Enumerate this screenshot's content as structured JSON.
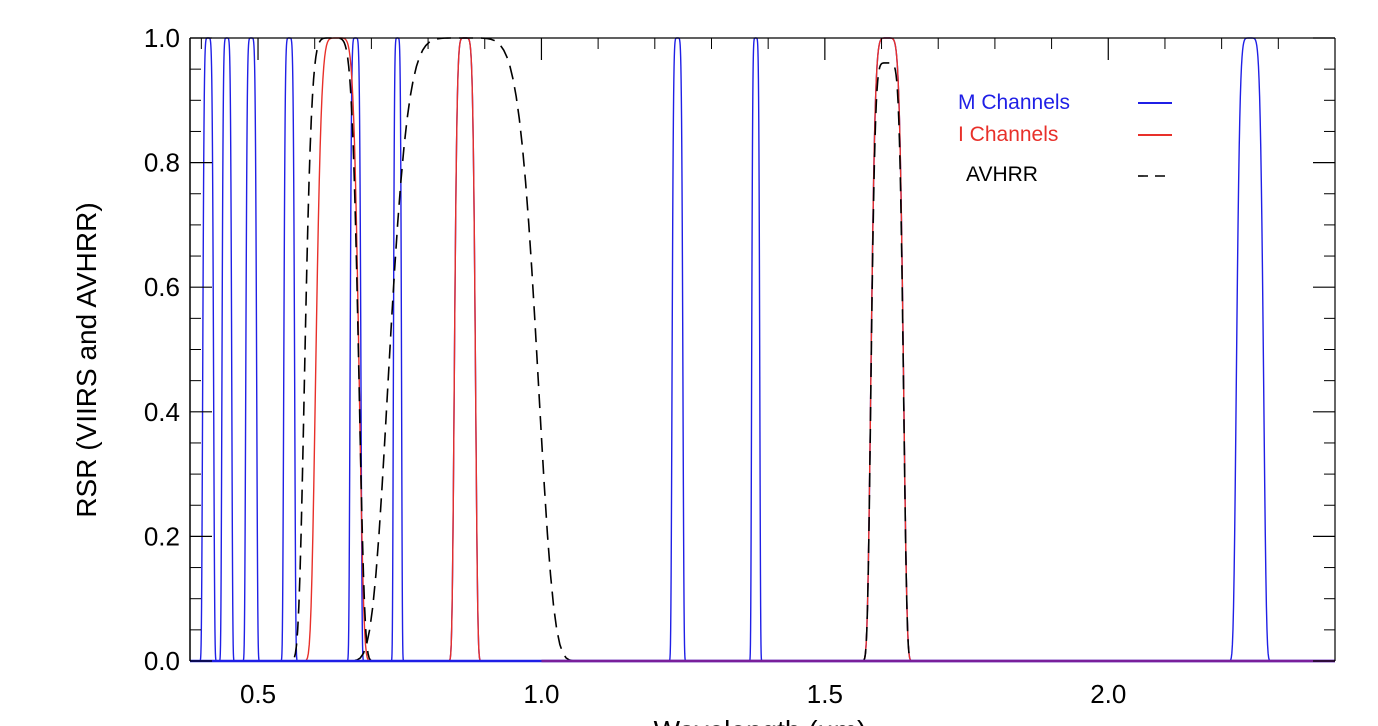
{
  "chart_data": {
    "type": "line",
    "xlabel": "Wavelength (µm)",
    "ylabel": "RSR (VIIRS and AVHRR)",
    "xlim": [
      0.38,
      2.4
    ],
    "ylim": [
      0.0,
      1.0
    ],
    "xticks": [
      0.5,
      1.0,
      1.5,
      2.0
    ],
    "xtick_labels": [
      "0.5",
      "1.0",
      "1.5",
      "2.0"
    ],
    "yticks": [
      0.0,
      0.2,
      0.4,
      0.6,
      0.8,
      1.0
    ],
    "ytick_labels": [
      "0.0",
      "0.2",
      "0.4",
      "0.6",
      "0.8",
      "1.0"
    ],
    "grid": false,
    "legend": {
      "placement": "top-right",
      "entries": [
        {
          "label": "M Channels",
          "color": "#1f1fe6",
          "style": "solid"
        },
        {
          "label": "I Channels",
          "color": "#e8302a",
          "style": "solid"
        },
        {
          "label": "AVHRR",
          "color": "#000000",
          "style": "dashed"
        }
      ]
    },
    "series": [
      {
        "name": "M Channels",
        "color": "#1f1fe6",
        "style": "solid",
        "bands": [
          {
            "center": 0.412,
            "width": 0.02,
            "peak": 1.0
          },
          {
            "center": 0.445,
            "width": 0.018,
            "peak": 1.0
          },
          {
            "center": 0.488,
            "width": 0.02,
            "peak": 1.0
          },
          {
            "center": 0.555,
            "width": 0.02,
            "peak": 1.0
          },
          {
            "center": 0.672,
            "width": 0.02,
            "peak": 1.0
          },
          {
            "center": 0.746,
            "width": 0.015,
            "peak": 1.0
          },
          {
            "center": 0.865,
            "width": 0.039,
            "peak": 1.0
          },
          {
            "center": 1.24,
            "width": 0.02,
            "peak": 1.0
          },
          {
            "center": 1.378,
            "width": 0.015,
            "peak": 1.0
          },
          {
            "center": 1.61,
            "width": 0.06,
            "peak": 1.0
          },
          {
            "center": 2.25,
            "width": 0.05,
            "peak": 1.0
          }
        ]
      },
      {
        "name": "I Channels",
        "color": "#e8302a",
        "style": "solid",
        "bands": [
          {
            "center": 0.64,
            "width": 0.08,
            "peak": 1.0
          },
          {
            "center": 0.865,
            "width": 0.039,
            "peak": 1.0
          },
          {
            "center": 1.61,
            "width": 0.06,
            "peak": 1.0
          }
        ]
      },
      {
        "name": "AVHRR",
        "color": "#000000",
        "style": "dashed",
        "bands": [
          {
            "center": 0.63,
            "width": 0.1,
            "peak": 1.0
          },
          {
            "center": 0.862,
            "width": 0.275,
            "peak": 1.0
          },
          {
            "center": 1.61,
            "width": 0.06,
            "peak": 0.96
          }
        ]
      }
    ]
  }
}
